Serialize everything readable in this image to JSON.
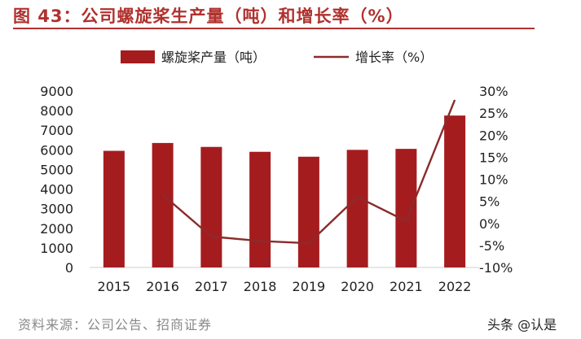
{
  "title": "图 43：公司螺旋桨生产量（吨）和增长率（%）",
  "source": "资料来源：公司公告、招商证券",
  "watermark": "头条 @认是",
  "colors": {
    "bar": "#a51c1f",
    "line": "#8b2b2b",
    "title": "#b0312e",
    "axis": "#cfcfcf"
  },
  "chart_data": {
    "type": "bar",
    "categories": [
      "2015",
      "2016",
      "2017",
      "2018",
      "2019",
      "2020",
      "2021",
      "2022"
    ],
    "series": [
      {
        "name": "螺旋桨产量（吨）",
        "type": "bar",
        "axis": "left",
        "values": [
          5950,
          6350,
          6150,
          5900,
          5650,
          6000,
          6050,
          7750
        ]
      },
      {
        "name": "增长率（%）",
        "type": "line",
        "axis": "right",
        "values": [
          null,
          6.5,
          -3.0,
          -4.0,
          -4.5,
          6.0,
          0.5,
          28.0
        ]
      }
    ],
    "y_left": {
      "ylim": [
        0,
        9000
      ],
      "ticks": [
        "0",
        "1000",
        "2000",
        "3000",
        "4000",
        "5000",
        "6000",
        "7000",
        "8000",
        "9000"
      ]
    },
    "y_right": {
      "ylim": [
        -10,
        30
      ],
      "ticks": [
        "-10%",
        "-5%",
        "0%",
        "5%",
        "10%",
        "15%",
        "20%",
        "25%",
        "30%"
      ]
    },
    "legend_placement": "top-center",
    "grid": false
  }
}
